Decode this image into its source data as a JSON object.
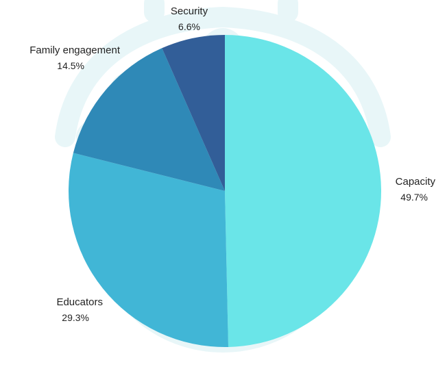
{
  "chart_data": {
    "type": "pie",
    "title": "",
    "start_angle_deg": 0,
    "direction": "clockwise",
    "slices": [
      {
        "name": "Capacity",
        "percent_label": "49.7%",
        "value": 49.7,
        "color": "#67e4e8",
        "label_side": "right"
      },
      {
        "name": "Educators",
        "percent_label": "29.3%",
        "value": 29.3,
        "color": "#3db5d5",
        "label_side": "left"
      },
      {
        "name": "Family engagement",
        "percent_label": "14.5%",
        "value": 14.5,
        "color": "#2b87b6",
        "label_side": "left"
      },
      {
        "name": "Security",
        "percent_label": "6.6%",
        "value": 6.6,
        "color": "#2e5b96",
        "label_side": "center"
      }
    ],
    "legend": "none"
  },
  "watermark": {
    "visible": true,
    "color": "#e8f6f8"
  }
}
